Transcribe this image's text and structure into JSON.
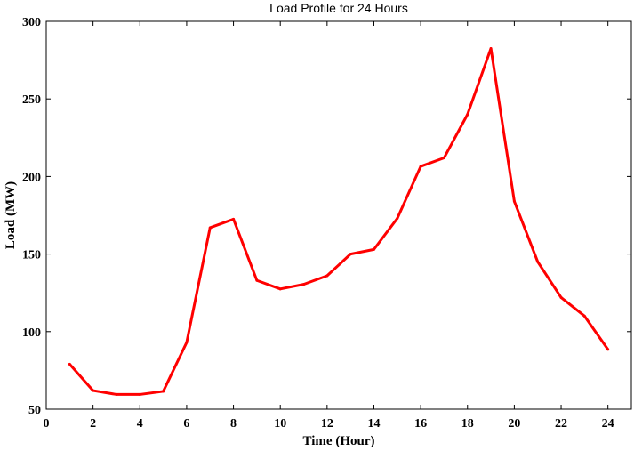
{
  "chart_data": {
    "type": "line",
    "title": "Load Profile for 24 Hours",
    "xlabel": "Time (Hour)",
    "ylabel": "Load (MW)",
    "xlim": [
      0,
      25
    ],
    "ylim": [
      50,
      300
    ],
    "xticks": [
      0,
      2,
      4,
      6,
      8,
      10,
      12,
      14,
      16,
      18,
      20,
      22,
      24
    ],
    "yticks": [
      50,
      100,
      150,
      200,
      250,
      300
    ],
    "grid": false,
    "series": [
      {
        "color": "#ff0000",
        "x": [
          1,
          2,
          3,
          4,
          5,
          6,
          7,
          8,
          9,
          10,
          11,
          12,
          13,
          14,
          15,
          16,
          17,
          18,
          19,
          20,
          21,
          22,
          23,
          24
        ],
        "y": [
          79,
          62,
          59.5,
          59.5,
          61.5,
          93,
          167,
          172.5,
          133,
          127.5,
          130.5,
          136,
          150,
          153,
          173,
          206.5,
          212,
          240,
          282.5,
          184,
          145,
          122,
          110,
          88.5
        ]
      }
    ]
  }
}
